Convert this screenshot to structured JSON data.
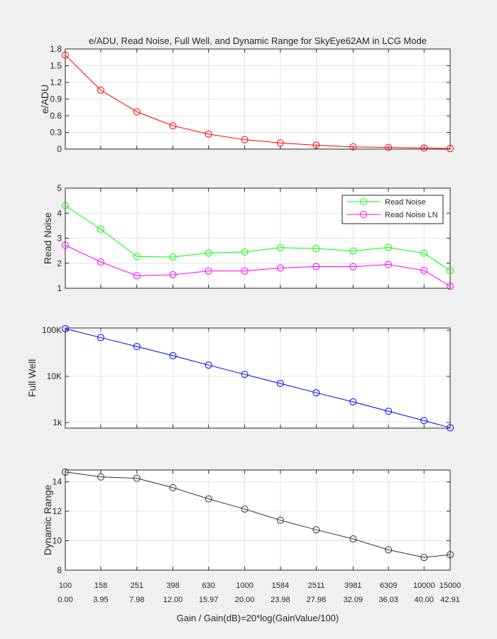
{
  "chart_data": {
    "title": "e/ADU, Read Noise, Full Well, and Dynamic Range for SkyEye62AM in LCG Mode",
    "xlabel": "Gain / Gain(dB)=20*log(GainValue/100)",
    "x_gain_labels": [
      "100",
      "158",
      "251",
      "398",
      "630",
      "1000",
      "1584",
      "2511",
      "3981",
      "6309",
      "10000",
      "15000"
    ],
    "x_db_labels": [
      "0.00",
      "3.95",
      "7.98",
      "12.00",
      "15.97",
      "20.00",
      "23.98",
      "27.98",
      "32.09",
      "36.03",
      "40.00",
      "42.91"
    ],
    "x": [
      0,
      3.95,
      7.98,
      12.0,
      15.97,
      20.0,
      23.98,
      27.98,
      32.09,
      36.03,
      40.0,
      42.91
    ],
    "xlim": [
      0,
      42.91
    ],
    "grid": true,
    "panels": [
      {
        "type": "line",
        "ylabel": "e/ADU",
        "ylim": [
          0,
          1.8
        ],
        "yscale": "linear",
        "yticks": [
          0,
          0.3,
          0.6,
          0.9,
          1.2,
          1.5,
          1.8
        ],
        "ytick_labels": [
          "0",
          "0.3",
          "0.6",
          "0.9",
          "1.2",
          "1.5",
          "1.8"
        ],
        "series": [
          {
            "color": "#ff0000",
            "values": [
              1.69,
              1.06,
              0.67,
              0.42,
              0.27,
              0.17,
              0.11,
              0.07,
              0.04,
              0.03,
              0.02,
              0.01
            ]
          }
        ]
      },
      {
        "type": "line",
        "ylabel": "Read Noise",
        "ylim": [
          1,
          5
        ],
        "yscale": "linear",
        "yticks": [
          1,
          2,
          3,
          4,
          5
        ],
        "ytick_labels": [
          "1",
          "2",
          "3",
          "4",
          "5"
        ],
        "legend": "top-right",
        "series": [
          {
            "name": "Read Noise",
            "color": "#00ff00",
            "values": [
              4.3,
              3.36,
              2.27,
              2.25,
              2.41,
              2.45,
              2.62,
              2.59,
              2.49,
              2.63,
              2.4,
              1.7
            ]
          },
          {
            "name": "Read Noise LN",
            "color": "#ff00ff",
            "values": [
              2.72,
              2.05,
              1.5,
              1.54,
              1.69,
              1.69,
              1.81,
              1.87,
              1.86,
              1.95,
              1.71,
              1.08
            ]
          }
        ]
      },
      {
        "type": "line",
        "ylabel": "Full Well",
        "ylim": [
          755,
          111000
        ],
        "yscale": "log",
        "yticks": [
          1000,
          10000,
          100000
        ],
        "ytick_labels": [
          "1k",
          "10K",
          "100K"
        ],
        "series": [
          {
            "color": "#0000ff",
            "values": [
              107000,
              69000,
              44000,
              28000,
              17500,
              11000,
              7000,
              4400,
              2800,
              1750,
              1100,
              770
            ]
          }
        ]
      },
      {
        "type": "line",
        "ylabel": "Dynamic Range",
        "ylim": [
          8,
          14.8
        ],
        "yscale": "linear",
        "yticks": [
          8,
          10,
          12,
          14
        ],
        "ytick_labels": [
          "8",
          "10",
          "12",
          "14"
        ],
        "series": [
          {
            "color": "#333333",
            "values": [
              14.67,
              14.33,
              14.24,
              13.6,
              12.84,
              12.15,
              11.39,
              10.74,
              10.12,
              9.38,
              8.86,
              9.05
            ]
          }
        ]
      }
    ]
  }
}
